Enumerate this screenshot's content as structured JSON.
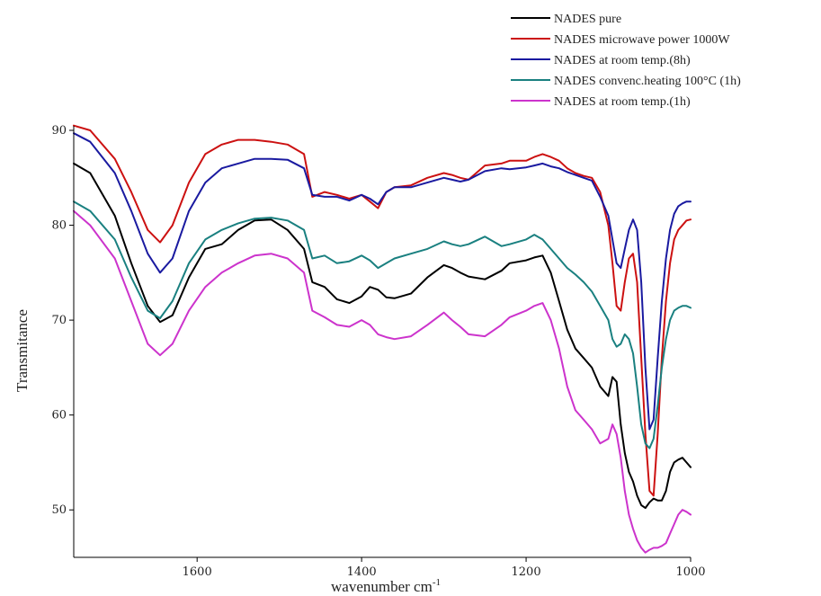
{
  "chart_data": {
    "type": "line",
    "title": "",
    "xlabel": "wavenumber cm",
    "xlabel_superscript": "-1",
    "ylabel": "Transmitance",
    "xlim": [
      1750,
      1000
    ],
    "ylim": [
      45,
      90
    ],
    "x_reversed": true,
    "xticks": [
      1600,
      1400,
      1200,
      1000
    ],
    "xtick_labels": [
      "1600",
      "1400",
      "1200",
      "1000"
    ],
    "yticks": [
      50,
      60,
      70,
      80,
      90
    ],
    "ytick_labels": [
      "50",
      "60",
      "70",
      "80",
      "90"
    ],
    "grid": false,
    "legend_position": "top-right",
    "x": [
      1750,
      1730,
      1700,
      1680,
      1660,
      1645,
      1630,
      1610,
      1590,
      1570,
      1550,
      1530,
      1510,
      1490,
      1470,
      1460,
      1445,
      1430,
      1415,
      1400,
      1390,
      1380,
      1370,
      1360,
      1340,
      1320,
      1300,
      1290,
      1280,
      1270,
      1250,
      1230,
      1220,
      1200,
      1190,
      1180,
      1170,
      1160,
      1150,
      1140,
      1130,
      1120,
      1110,
      1100,
      1095,
      1090,
      1085,
      1080,
      1075,
      1070,
      1065,
      1060,
      1055,
      1050,
      1045,
      1040,
      1035,
      1030,
      1025,
      1020,
      1015,
      1010,
      1005,
      1000
    ],
    "series": [
      {
        "name": "NADES pure",
        "color": "#000000",
        "values": [
          86.5,
          85.5,
          81.0,
          76.0,
          71.5,
          69.8,
          70.5,
          74.5,
          77.5,
          78.0,
          79.5,
          80.5,
          80.6,
          79.5,
          77.5,
          74.0,
          73.5,
          72.2,
          71.8,
          72.5,
          73.5,
          73.2,
          72.4,
          72.3,
          72.8,
          74.5,
          75.8,
          75.5,
          75.0,
          74.6,
          74.3,
          75.2,
          76.0,
          76.3,
          76.6,
          76.8,
          75.0,
          72.0,
          69.0,
          67.0,
          66.0,
          65.0,
          63.0,
          62.0,
          64.0,
          63.5,
          59.0,
          56.0,
          54.0,
          53.0,
          51.5,
          50.5,
          50.2,
          50.8,
          51.2,
          51.0,
          51.0,
          52.0,
          54.0,
          55.0,
          55.3,
          55.5,
          55.0,
          54.5
        ]
      },
      {
        "name": "NADES microwave power 1000W",
        "color": "#cc1111",
        "values": [
          90.5,
          90.0,
          87.0,
          83.5,
          79.5,
          78.2,
          80.0,
          84.5,
          87.5,
          88.5,
          89.0,
          89.0,
          88.8,
          88.5,
          87.5,
          83.0,
          83.5,
          83.2,
          82.8,
          83.2,
          82.5,
          81.8,
          83.5,
          84.0,
          84.2,
          85.0,
          85.5,
          85.3,
          85.0,
          84.8,
          86.3,
          86.5,
          86.8,
          86.8,
          87.2,
          87.5,
          87.2,
          86.8,
          86.0,
          85.5,
          85.2,
          85.0,
          83.5,
          80.0,
          76.0,
          71.5,
          71.0,
          74.0,
          76.5,
          77.0,
          74.0,
          66.0,
          58.0,
          52.0,
          51.5,
          58.0,
          66.0,
          72.0,
          76.0,
          78.5,
          79.5,
          80.0,
          80.5,
          80.6
        ]
      },
      {
        "name": "NADES at room temp.(8h)",
        "color": "#1a1aa0",
        "values": [
          89.7,
          88.8,
          85.5,
          81.5,
          77.0,
          75.0,
          76.5,
          81.5,
          84.5,
          86.0,
          86.5,
          87.0,
          87.0,
          86.9,
          86.0,
          83.2,
          83.0,
          83.0,
          82.6,
          83.2,
          82.8,
          82.2,
          83.5,
          84.0,
          84.0,
          84.5,
          85.0,
          84.8,
          84.6,
          84.8,
          85.7,
          86.0,
          85.9,
          86.1,
          86.3,
          86.5,
          86.2,
          86.0,
          85.6,
          85.3,
          85.0,
          84.7,
          83.0,
          81.0,
          78.5,
          76.0,
          75.5,
          77.5,
          79.5,
          80.6,
          79.5,
          74.0,
          65.0,
          58.5,
          59.5,
          66.0,
          72.0,
          76.5,
          79.5,
          81.2,
          82.0,
          82.3,
          82.5,
          82.5
        ]
      },
      {
        "name": "NADES convenc.heating 100°C (1h)",
        "color": "#1a8080",
        "values": [
          82.5,
          81.5,
          78.5,
          74.5,
          71.0,
          70.2,
          72.0,
          76.0,
          78.5,
          79.5,
          80.2,
          80.7,
          80.8,
          80.5,
          79.5,
          76.5,
          76.8,
          76.0,
          76.2,
          76.8,
          76.3,
          75.5,
          76.0,
          76.5,
          77.0,
          77.5,
          78.3,
          78.0,
          77.8,
          78.0,
          78.8,
          77.8,
          78.0,
          78.5,
          79.0,
          78.5,
          77.5,
          76.5,
          75.5,
          74.8,
          74.0,
          73.0,
          71.5,
          70.0,
          68.0,
          67.2,
          67.5,
          68.5,
          68.0,
          66.5,
          63.0,
          59.0,
          57.0,
          56.5,
          57.5,
          61.0,
          65.0,
          68.0,
          70.0,
          71.0,
          71.3,
          71.5,
          71.5,
          71.3
        ]
      },
      {
        "name": "NADES at room temp.(1h)",
        "color": "#cc33cc",
        "values": [
          81.5,
          80.0,
          76.5,
          72.0,
          67.5,
          66.3,
          67.5,
          71.0,
          73.5,
          75.0,
          76.0,
          76.8,
          77.0,
          76.5,
          75.0,
          71.0,
          70.3,
          69.5,
          69.3,
          70.0,
          69.5,
          68.5,
          68.2,
          68.0,
          68.3,
          69.5,
          70.8,
          70.0,
          69.3,
          68.5,
          68.3,
          69.5,
          70.3,
          71.0,
          71.5,
          71.8,
          70.0,
          67.0,
          63.0,
          60.5,
          59.5,
          58.5,
          57.0,
          57.5,
          59.0,
          58.0,
          55.5,
          52.0,
          49.5,
          48.0,
          46.8,
          46.0,
          45.5,
          45.8,
          46.0,
          46.0,
          46.2,
          46.5,
          47.5,
          48.5,
          49.5,
          50.0,
          49.8,
          49.5
        ]
      }
    ]
  }
}
